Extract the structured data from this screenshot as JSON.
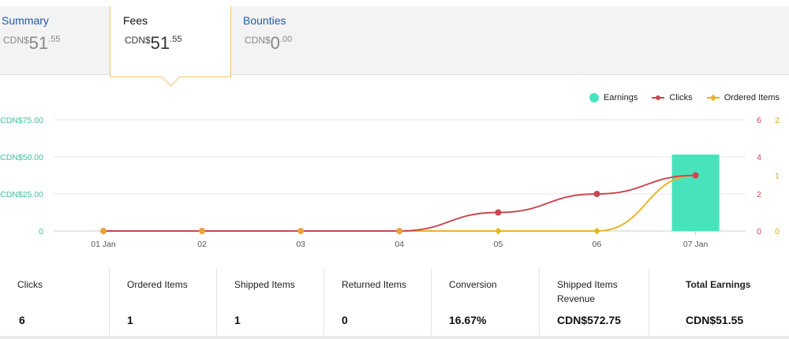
{
  "tabs": [
    {
      "label": "Summary",
      "currency": "CDN$",
      "whole": "51",
      "decimal": ".55",
      "active": false
    },
    {
      "label": "Fees",
      "currency": "CDN$",
      "whole": "51",
      "decimal": ".55",
      "active": true
    },
    {
      "label": "Bounties",
      "currency": "CDN$",
      "whole": "0",
      "decimal": ".00",
      "active": false
    }
  ],
  "legend": {
    "earnings": "Earnings",
    "clicks": "Clicks",
    "ordered": "Ordered Items"
  },
  "colors": {
    "earnings": "#48e3bd",
    "clicks": "#c9474f",
    "ordered": "#e8b52a",
    "ordered_marker": "#e8a33a"
  },
  "chart_data": {
    "type": "bar",
    "categories": [
      "01 Jan",
      "02",
      "03",
      "04",
      "05",
      "06",
      "07 Jan"
    ],
    "series": [
      {
        "name": "Earnings",
        "type": "bar",
        "axis": "left",
        "values": [
          0,
          0,
          0,
          0,
          0,
          0,
          51.55
        ]
      },
      {
        "name": "Clicks",
        "type": "line",
        "axis": "right1",
        "values": [
          0,
          0,
          0,
          0,
          1,
          2,
          3
        ]
      },
      {
        "name": "Ordered Items",
        "type": "line",
        "axis": "right2",
        "values": [
          0,
          0,
          0,
          0,
          0,
          0,
          1
        ]
      }
    ],
    "y_left": {
      "ticks": [
        "CDN$75.00",
        "CDN$50.00",
        "CDN$25.00",
        "0"
      ],
      "range": [
        0,
        75
      ]
    },
    "y_right1": {
      "ticks": [
        "6",
        "4",
        "2",
        "0"
      ],
      "range": [
        0,
        6
      ]
    },
    "y_right2": {
      "ticks": [
        "2",
        "1",
        "0"
      ],
      "range": [
        0,
        2
      ]
    },
    "grid": true,
    "legend_position": "top-right"
  },
  "metrics": [
    {
      "label": "Clicks",
      "value": "6"
    },
    {
      "label": "Ordered Items",
      "value": "1"
    },
    {
      "label": "Shipped Items",
      "value": "1"
    },
    {
      "label": "Returned Items",
      "value": "0"
    },
    {
      "label": "Conversion",
      "value": "16.67%"
    },
    {
      "label": "Shipped Items Revenue",
      "value": "CDN$572.75"
    },
    {
      "label": "Total Earnings",
      "value": "CDN$51.55"
    }
  ]
}
